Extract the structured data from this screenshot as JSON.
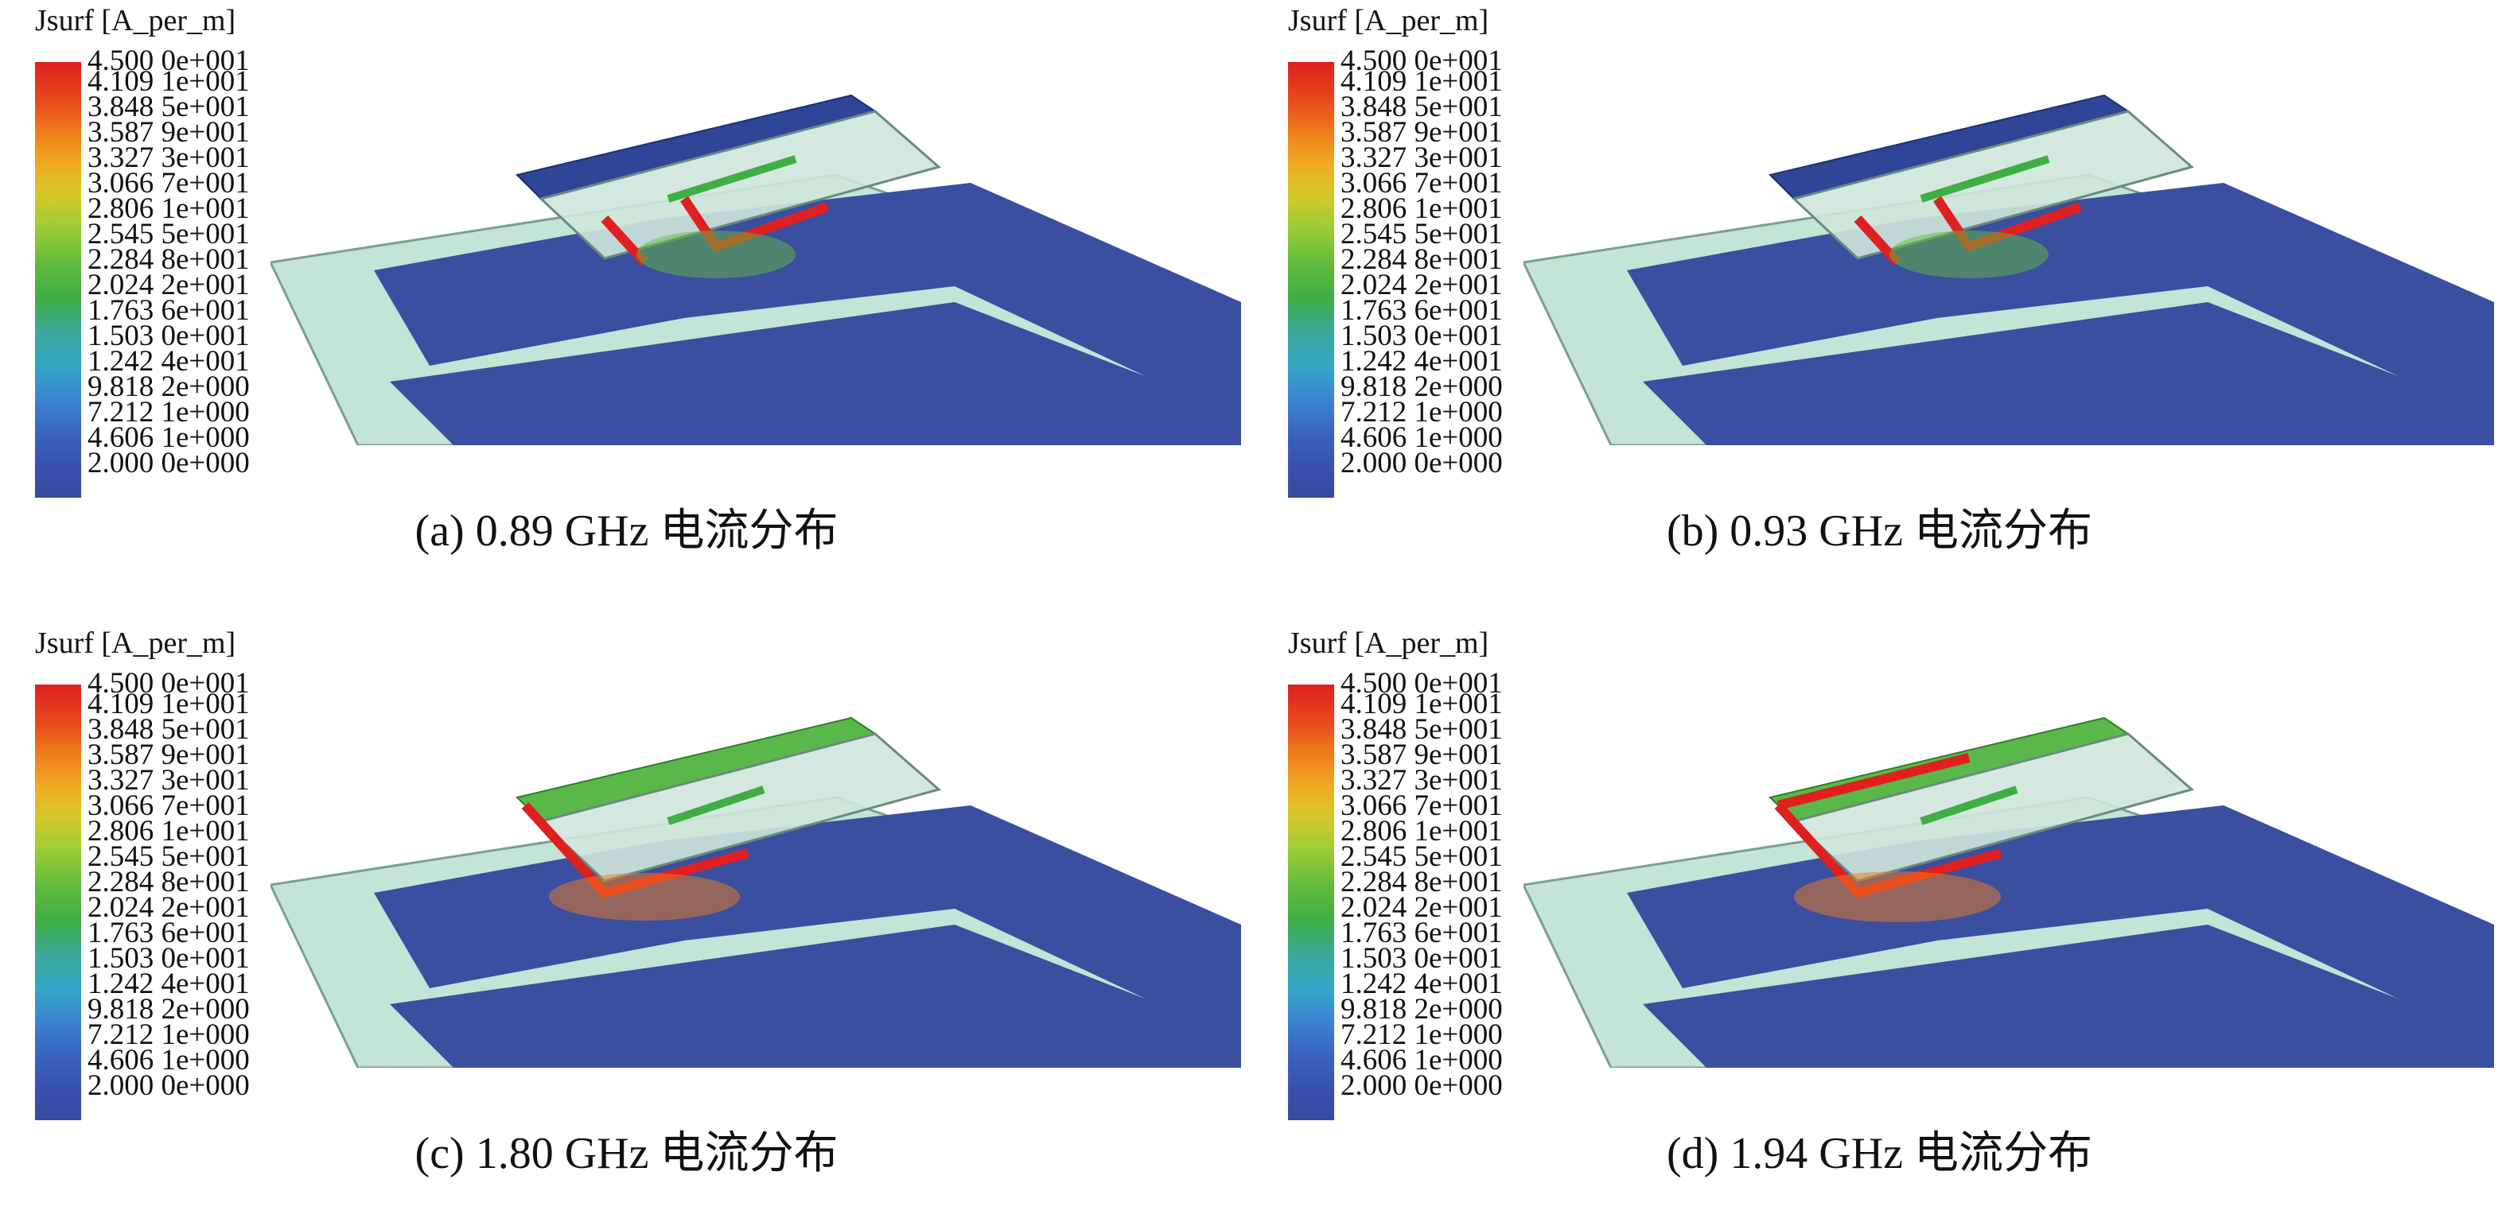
{
  "legend": {
    "title": "Jsurf [A_per_m]",
    "ticks": [
      "4.500 0e+001",
      "4.109 1e+001",
      "3.848 5e+001",
      "3.587 9e+001",
      "3.327 3e+001",
      "3.066 7e+001",
      "2.806 1e+001",
      "2.545 5e+001",
      "2.284 8e+001",
      "2.024 2e+001",
      "1.763 6e+001",
      "1.503 0e+001",
      "1.242 4e+001",
      "9.818 2e+000",
      "7.212 1e+000",
      "4.606 1e+000",
      "2.000 0e+000"
    ]
  },
  "panels": [
    {
      "caption": "(a) 0.89 GHz 电流分布"
    },
    {
      "caption": "(b) 0.93 GHz 电流分布"
    },
    {
      "caption": "(c) 1.80 GHz 电流分布"
    },
    {
      "caption": "(d) 1.94 GHz 电流分布"
    }
  ],
  "colors": {
    "ground": "#3a4fa0",
    "board": "#c5e3d6",
    "hot": "#e02020",
    "warm": "#5ab84a"
  }
}
